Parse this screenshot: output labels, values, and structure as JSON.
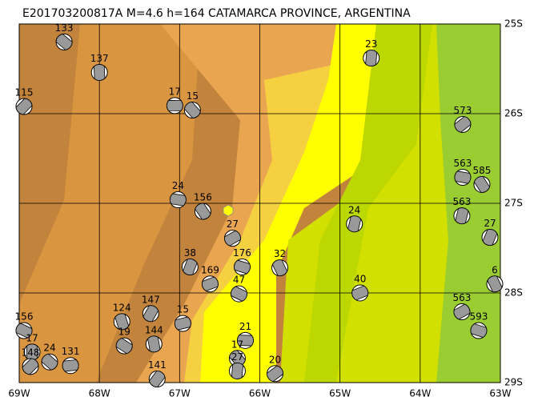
{
  "chart_data": {
    "type": "map",
    "title": "E201703200817A M=4.6 h=164 CATAMARCA PROVINCE, ARGENTINA",
    "xlim": [
      -69,
      -63
    ],
    "ylim": [
      -29,
      -25
    ],
    "xticks": [
      {
        "value": -69,
        "label": "69W"
      },
      {
        "value": -68,
        "label": "68W"
      },
      {
        "value": -67,
        "label": "67W"
      },
      {
        "value": -66,
        "label": "66W"
      },
      {
        "value": -65,
        "label": "65W"
      },
      {
        "value": -64,
        "label": "64W"
      },
      {
        "value": -63,
        "label": "63W"
      }
    ],
    "yticks": [
      {
        "value": -25,
        "label": "25S"
      },
      {
        "value": -26,
        "label": "26S"
      },
      {
        "value": -27,
        "label": "27S"
      },
      {
        "value": -28,
        "label": "28S"
      },
      {
        "value": -29,
        "label": "29S"
      }
    ],
    "grid": true,
    "points": [
      {
        "x": -68.44,
        "y": -25.2,
        "label": "133"
      },
      {
        "x": -68.0,
        "y": -25.54,
        "label": "137"
      },
      {
        "x": -68.94,
        "y": -25.92,
        "label": "115"
      },
      {
        "x": -67.06,
        "y": -25.91,
        "label": "17"
      },
      {
        "x": -66.84,
        "y": -25.96,
        "label": "15"
      },
      {
        "x": -64.61,
        "y": -25.38,
        "label": "23"
      },
      {
        "x": -63.47,
        "y": -26.12,
        "label": "573"
      },
      {
        "x": -67.02,
        "y": -26.96,
        "label": "24"
      },
      {
        "x": -66.71,
        "y": -27.09,
        "label": "156"
      },
      {
        "x": -64.82,
        "y": -27.23,
        "label": "24"
      },
      {
        "x": -66.34,
        "y": -27.39,
        "label": "27"
      },
      {
        "x": -66.22,
        "y": -27.71,
        "label": "176"
      },
      {
        "x": -65.75,
        "y": -27.72,
        "label": "32"
      },
      {
        "x": -66.87,
        "y": -27.71,
        "label": "38"
      },
      {
        "x": -64.75,
        "y": -28.0,
        "label": "40"
      },
      {
        "x": -68.94,
        "y": -28.42,
        "label": "156"
      },
      {
        "x": -67.72,
        "y": -28.32,
        "label": "124"
      },
      {
        "x": -67.36,
        "y": -28.23,
        "label": "147"
      },
      {
        "x": -66.96,
        "y": -28.34,
        "label": "15"
      },
      {
        "x": -67.69,
        "y": -28.59,
        "label": "19"
      },
      {
        "x": -67.32,
        "y": -28.57,
        "label": "144"
      },
      {
        "x": -67.28,
        "y": -28.96,
        "label": "141"
      },
      {
        "x": -68.36,
        "y": -28.81,
        "label": "131"
      },
      {
        "x": -68.62,
        "y": -28.77,
        "label": "24"
      },
      {
        "x": -68.84,
        "y": -28.66,
        "label": "17"
      },
      {
        "x": -68.86,
        "y": -28.82,
        "label": "148"
      },
      {
        "x": -66.18,
        "y": -28.53,
        "label": "21"
      },
      {
        "x": -66.28,
        "y": -28.73,
        "label": "17"
      },
      {
        "x": -66.28,
        "y": -28.87,
        "label": "27"
      },
      {
        "x": -65.81,
        "y": -28.9,
        "label": "20"
      },
      {
        "x": -63.47,
        "y": -26.71,
        "label": "563"
      },
      {
        "x": -63.23,
        "y": -26.79,
        "label": "585"
      },
      {
        "x": -63.48,
        "y": -27.14,
        "label": "563"
      },
      {
        "x": -63.48,
        "y": -28.21,
        "label": "563"
      },
      {
        "x": -63.27,
        "y": -28.42,
        "label": "593"
      },
      {
        "x": -63.07,
        "y": -27.9,
        "label": "6"
      },
      {
        "x": -63.13,
        "y": -27.38,
        "label": "27"
      },
      {
        "x": -66.62,
        "y": -27.9,
        "label": "169"
      },
      {
        "x": -66.26,
        "y": -28.01,
        "label": "47"
      }
    ]
  }
}
